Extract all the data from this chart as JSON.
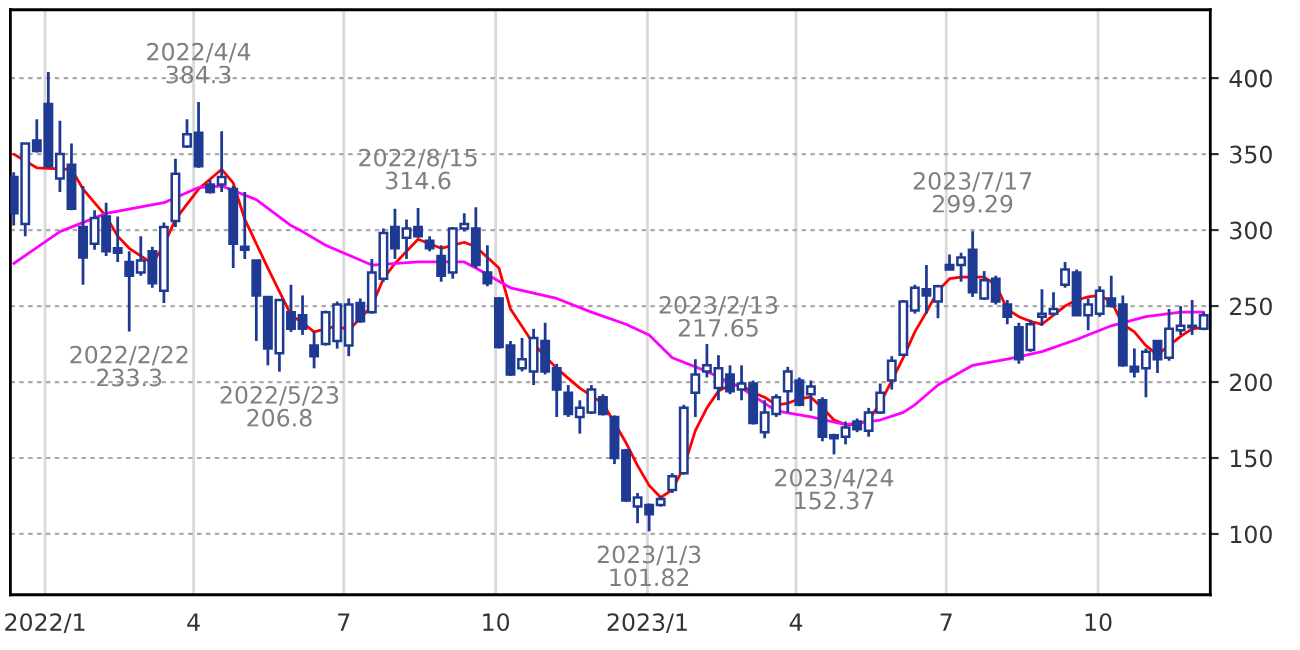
{
  "chart_data": {
    "type": "candlestick",
    "color": "#1f3a93",
    "x": [
      "2021-12-13",
      "2021-12-20",
      "2021-12-27",
      "2022-01-03",
      "2022-01-10",
      "2022-01-17",
      "2022-01-24",
      "2022-01-31",
      "2022-02-07",
      "2022-02-14",
      "2022-02-21",
      "2022-02-28",
      "2022-03-07",
      "2022-03-14",
      "2022-03-21",
      "2022-03-28",
      "2022-04-04",
      "2022-04-11",
      "2022-04-18",
      "2022-04-25",
      "2022-05-02",
      "2022-05-09",
      "2022-05-16",
      "2022-05-23",
      "2022-05-30",
      "2022-06-06",
      "2022-06-13",
      "2022-06-20",
      "2022-06-27",
      "2022-07-04",
      "2022-07-11",
      "2022-07-18",
      "2022-07-25",
      "2022-08-01",
      "2022-08-08",
      "2022-08-15",
      "2022-08-22",
      "2022-08-29",
      "2022-09-05",
      "2022-09-12",
      "2022-09-19",
      "2022-09-26",
      "2022-10-03",
      "2022-10-10",
      "2022-10-17",
      "2022-10-24",
      "2022-10-31",
      "2022-11-07",
      "2022-11-14",
      "2022-11-21",
      "2022-11-28",
      "2022-12-05",
      "2022-12-12",
      "2022-12-19",
      "2022-12-26",
      "2023-01-02",
      "2023-01-09",
      "2023-01-16",
      "2023-01-23",
      "2023-01-30",
      "2023-02-06",
      "2023-02-13",
      "2023-02-20",
      "2023-02-27",
      "2023-03-06",
      "2023-03-13",
      "2023-03-20",
      "2023-03-27",
      "2023-04-03",
      "2023-04-10",
      "2023-04-17",
      "2023-04-24",
      "2023-05-01",
      "2023-05-08",
      "2023-05-15",
      "2023-05-22",
      "2023-05-29",
      "2023-06-05",
      "2023-06-12",
      "2023-06-19",
      "2023-06-26",
      "2023-07-03",
      "2023-07-10",
      "2023-07-17",
      "2023-07-24",
      "2023-07-31",
      "2023-08-07",
      "2023-08-14",
      "2023-08-21",
      "2023-08-28",
      "2023-09-04",
      "2023-09-11",
      "2023-09-18",
      "2023-09-25",
      "2023-10-02",
      "2023-10-09",
      "2023-10-16",
      "2023-10-23",
      "2023-10-30",
      "2023-11-06",
      "2023-11-13",
      "2023-11-20",
      "2023-11-27",
      "2023-12-04"
    ],
    "ohlc": [
      [
        335,
        338,
        303,
        311
      ],
      [
        304,
        357,
        296,
        357
      ],
      [
        359,
        373,
        351,
        352
      ],
      [
        383,
        404,
        341,
        342
      ],
      [
        334,
        372,
        325,
        350
      ],
      [
        343,
        357,
        313,
        314
      ],
      [
        302,
        329,
        264,
        282
      ],
      [
        291,
        313,
        287,
        308
      ],
      [
        309,
        318,
        283,
        286
      ],
      [
        288,
        309,
        279,
        285
      ],
      [
        279,
        286,
        233.3,
        270
      ],
      [
        272,
        296,
        270,
        280
      ],
      [
        286,
        289,
        262,
        265
      ],
      [
        260,
        305,
        252,
        302
      ],
      [
        306,
        347,
        302,
        337
      ],
      [
        355,
        373,
        354,
        363
      ],
      [
        364,
        384.3,
        341,
        342
      ],
      [
        330,
        333,
        324,
        325
      ],
      [
        330,
        365,
        325,
        335
      ],
      [
        327,
        329,
        275,
        291
      ],
      [
        289,
        325,
        281,
        287
      ],
      [
        280,
        280,
        227,
        257
      ],
      [
        256,
        256,
        211,
        222
      ],
      [
        219,
        254,
        206.8,
        254
      ],
      [
        246,
        264,
        233,
        235
      ],
      [
        244,
        257,
        231,
        235
      ],
      [
        224,
        233,
        209,
        217
      ],
      [
        225,
        247,
        224,
        246
      ],
      [
        227,
        253,
        222,
        251
      ],
      [
        224,
        255,
        217,
        251
      ],
      [
        252,
        255,
        239,
        240
      ],
      [
        246,
        281,
        245,
        272
      ],
      [
        268,
        301,
        266,
        298
      ],
      [
        302,
        314,
        281,
        288
      ],
      [
        295,
        307,
        281,
        301
      ],
      [
        302,
        314.6,
        295,
        296
      ],
      [
        293,
        296,
        286,
        288
      ],
      [
        283,
        290,
        266,
        270
      ],
      [
        272,
        302,
        268,
        301
      ],
      [
        301,
        311,
        299,
        304
      ],
      [
        301,
        315,
        275,
        277
      ],
      [
        272,
        290,
        263,
        265
      ],
      [
        255,
        256,
        222,
        223
      ],
      [
        224,
        227,
        204,
        205
      ],
      [
        209,
        229,
        207,
        215
      ],
      [
        207,
        235,
        198,
        229
      ],
      [
        227,
        239,
        205,
        207
      ],
      [
        209,
        212,
        177,
        195
      ],
      [
        193,
        198,
        177,
        179
      ],
      [
        177,
        188,
        166,
        183
      ],
      [
        180,
        198,
        179,
        195
      ],
      [
        190,
        192,
        178,
        179
      ],
      [
        177,
        178,
        146,
        150
      ],
      [
        155,
        156,
        121,
        122
      ],
      [
        118,
        127,
        107,
        124
      ],
      [
        119,
        120,
        101.82,
        113
      ],
      [
        119,
        125,
        118,
        123
      ],
      [
        129,
        140,
        127,
        138
      ],
      [
        140,
        185,
        139,
        183
      ],
      [
        193,
        215,
        177,
        205
      ],
      [
        207,
        225,
        203,
        211
      ],
      [
        196,
        217.65,
        188,
        209
      ],
      [
        205,
        211,
        192,
        194
      ],
      [
        195,
        211,
        188,
        199
      ],
      [
        199,
        201,
        172,
        173
      ],
      [
        167,
        188,
        163,
        180
      ],
      [
        179,
        192,
        177,
        190
      ],
      [
        194,
        210,
        180,
        207
      ],
      [
        201,
        203,
        184,
        185
      ],
      [
        192,
        201,
        181,
        197
      ],
      [
        188,
        190,
        161,
        164
      ],
      [
        165,
        166,
        152.37,
        163
      ],
      [
        164,
        174,
        159,
        170
      ],
      [
        174,
        176,
        167,
        169
      ],
      [
        168,
        183,
        164,
        180
      ],
      [
        180,
        199,
        179,
        193
      ],
      [
        201,
        217,
        195,
        214
      ],
      [
        218,
        254,
        217,
        253
      ],
      [
        247,
        264,
        245,
        262
      ],
      [
        261,
        277,
        245,
        257
      ],
      [
        253,
        264,
        242,
        263
      ],
      [
        277,
        284,
        274,
        274
      ],
      [
        277,
        285,
        266,
        282
      ],
      [
        287,
        299.29,
        256,
        259
      ],
      [
        255,
        273,
        254,
        267
      ],
      [
        268,
        270,
        251,
        253
      ],
      [
        251,
        254,
        238,
        243
      ],
      [
        236,
        239,
        212,
        215
      ],
      [
        221,
        241,
        220,
        238
      ],
      [
        243,
        261,
        237,
        245
      ],
      [
        245,
        259,
        244,
        248
      ],
      [
        264,
        279,
        262,
        274
      ],
      [
        272,
        274,
        244,
        244
      ],
      [
        244,
        255,
        234,
        251
      ],
      [
        245,
        263,
        243,
        260
      ],
      [
        255,
        270,
        249,
        250
      ],
      [
        251,
        257,
        210,
        211
      ],
      [
        210,
        222,
        203,
        207
      ],
      [
        209,
        222,
        190,
        220
      ],
      [
        227,
        227,
        206,
        215
      ],
      [
        216,
        248,
        214,
        235
      ],
      [
        234,
        250,
        231,
        237
      ],
      [
        236,
        254,
        231,
        237
      ],
      [
        235,
        246,
        234,
        244
      ]
    ],
    "series": [
      {
        "type": "line",
        "color": "#ff0000",
        "x": [
          "2021-12-13",
          "2021-12-27",
          "2022-01-17",
          "2022-01-24",
          "2022-02-07",
          "2022-02-14",
          "2022-02-21",
          "2022-03-07",
          "2022-03-14",
          "2022-03-21",
          "2022-04-04",
          "2022-04-18",
          "2022-04-25",
          "2022-05-02",
          "2022-05-16",
          "2022-05-30",
          "2022-06-06",
          "2022-06-13",
          "2022-06-27",
          "2022-07-04",
          "2022-07-18",
          "2022-07-25",
          "2022-08-01",
          "2022-08-15",
          "2022-08-29",
          "2022-09-12",
          "2022-09-19",
          "2022-10-03",
          "2022-10-10",
          "2022-10-24",
          "2022-11-07",
          "2022-11-21",
          "2022-12-05",
          "2022-12-19",
          "2022-12-26",
          "2023-01-02",
          "2023-01-09",
          "2023-01-16",
          "2023-01-23",
          "2023-01-30",
          "2023-02-06",
          "2023-02-13",
          "2023-02-20",
          "2023-02-27",
          "2023-03-06",
          "2023-03-13",
          "2023-03-20",
          "2023-03-27",
          "2023-04-03",
          "2023-04-10",
          "2023-04-17",
          "2023-04-24",
          "2023-05-01",
          "2023-05-08",
          "2023-05-15",
          "2023-05-22",
          "2023-05-29",
          "2023-06-05",
          "2023-06-12",
          "2023-06-19",
          "2023-06-26",
          "2023-07-03",
          "2023-07-10",
          "2023-07-17",
          "2023-07-24",
          "2023-07-31",
          "2023-08-07",
          "2023-08-14",
          "2023-08-21",
          "2023-08-28",
          "2023-09-04",
          "2023-09-11",
          "2023-09-18",
          "2023-09-25",
          "2023-10-02",
          "2023-10-09",
          "2023-10-16",
          "2023-10-23",
          "2023-10-30",
          "2023-11-06",
          "2023-11-13",
          "2023-11-20",
          "2023-11-27",
          "2023-12-04"
        ],
        "values": [
          350,
          341,
          340,
          327,
          309,
          296,
          288,
          278,
          290,
          307,
          327,
          340,
          331,
          307,
          275,
          244,
          239,
          233,
          237,
          234,
          250,
          268,
          278,
          294,
          288,
          292,
          289,
          275,
          248,
          225,
          209,
          196,
          186,
          160,
          145,
          132,
          124,
          129,
          144,
          168,
          183,
          194,
          198,
          198,
          193,
          190,
          185,
          186,
          189,
          190,
          183,
          175,
          172,
          172,
          175,
          186,
          201,
          216,
          233,
          246,
          260,
          268,
          269,
          269,
          269,
          264,
          248,
          243,
          240,
          238,
          244,
          250,
          254,
          256,
          257,
          253,
          238,
          233,
          224,
          218,
          224,
          230,
          235,
          236
        ]
      },
      {
        "type": "line",
        "color": "#ff00ff",
        "x": [
          "2021-12-13",
          "2022-01-10",
          "2022-02-07",
          "2022-03-14",
          "2022-04-04",
          "2022-04-18",
          "2022-05-09",
          "2022-05-30",
          "2022-06-06",
          "2022-06-20",
          "2022-07-18",
          "2022-08-15",
          "2022-09-12",
          "2022-09-19",
          "2022-10-10",
          "2022-11-07",
          "2022-11-28",
          "2022-12-19",
          "2023-01-02",
          "2023-01-16",
          "2023-02-06",
          "2023-02-27",
          "2023-03-20",
          "2023-04-10",
          "2023-05-01",
          "2023-05-22",
          "2023-06-05",
          "2023-06-12",
          "2023-06-26",
          "2023-07-17",
          "2023-08-07",
          "2023-08-28",
          "2023-09-18",
          "2023-10-09",
          "2023-10-30",
          "2023-11-20",
          "2023-12-04"
        ],
        "values": [
          278,
          299,
          311,
          318,
          328,
          329,
          320,
          303,
          299,
          290,
          277,
          279,
          279,
          275,
          262,
          255,
          246,
          238,
          231,
          216,
          207,
          196,
          181,
          177,
          172,
          175,
          180,
          185,
          198,
          211,
          215,
          220,
          228,
          237,
          243,
          246,
          246
        ]
      }
    ],
    "xlim": [
      "2021-12-11",
      "2023-12-08"
    ],
    "xticks": [
      {
        "value": "2022-01-01",
        "label": "2022/1"
      },
      {
        "value": "2022-04-01",
        "label": "4"
      },
      {
        "value": "2022-07-01",
        "label": "7"
      },
      {
        "value": "2022-10-01",
        "label": "10"
      },
      {
        "value": "2023-01-01",
        "label": "2023/1"
      },
      {
        "value": "2023-04-01",
        "label": "4"
      },
      {
        "value": "2023-07-01",
        "label": "7"
      },
      {
        "value": "2023-10-01",
        "label": "10"
      }
    ],
    "ylim": [
      60,
      445
    ],
    "yticks": [
      100,
      150,
      200,
      250,
      300,
      350,
      400
    ],
    "grid": true,
    "annotations": [
      {
        "text": "2022/4/4\n384.3",
        "x": "2022-04-04",
        "y": 384.3
      },
      {
        "text": "2022/2/22\n233.3",
        "x": "2022-02-21",
        "y": 233.3
      },
      {
        "text": "2022/8/15\n314.6",
        "x": "2022-08-15",
        "y": 314.6
      },
      {
        "text": "2022/5/23\n206.8",
        "x": "2022-05-23",
        "y": 206.8
      },
      {
        "text": "2023/1/3\n101.82",
        "x": "2023-01-02",
        "y": 101.82
      },
      {
        "text": "2023/2/13\n217.65",
        "x": "2023-02-13",
        "y": 217.65
      },
      {
        "text": "2023/4/24\n152.37",
        "x": "2023-04-24",
        "y": 152.37
      },
      {
        "text": "2023/7/17\n299.29",
        "x": "2023-07-17",
        "y": 299.29
      }
    ]
  }
}
